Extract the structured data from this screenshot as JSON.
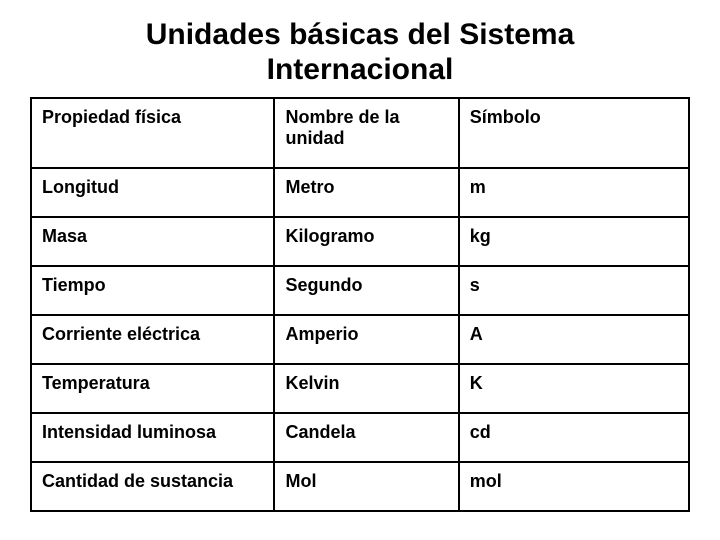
{
  "title": "Unidades básicas del Sistema Internacional",
  "title_fontsize": 30,
  "table": {
    "type": "table",
    "header_fontsize": 18,
    "cell_fontsize": 18,
    "border_color": "#000000",
    "text_color": "#000000",
    "background_color": "#ffffff",
    "columns": [
      {
        "key": "property",
        "label": "Propiedad física",
        "width_pct": 37
      },
      {
        "key": "unit",
        "label": "Nombre de la unidad",
        "width_pct": 28
      },
      {
        "key": "symbol",
        "label": "Símbolo",
        "width_pct": 35
      }
    ],
    "rows": [
      {
        "property": "Longitud",
        "unit": "Metro",
        "symbol": "m"
      },
      {
        "property": "Masa",
        "unit": "Kilogramo",
        "symbol": "kg"
      },
      {
        "property": "Tiempo",
        "unit": "Segundo",
        "symbol": "s"
      },
      {
        "property": "Corriente eléctrica",
        "unit": "Amperio",
        "symbol": "A"
      },
      {
        "property": "Temperatura",
        "unit": "Kelvin",
        "symbol": "K"
      },
      {
        "property": "Intensidad luminosa",
        "unit": "Candela",
        "symbol": "cd"
      },
      {
        "property": "Cantidad de sustancia",
        "unit": "Mol",
        "symbol": "mol"
      }
    ]
  }
}
